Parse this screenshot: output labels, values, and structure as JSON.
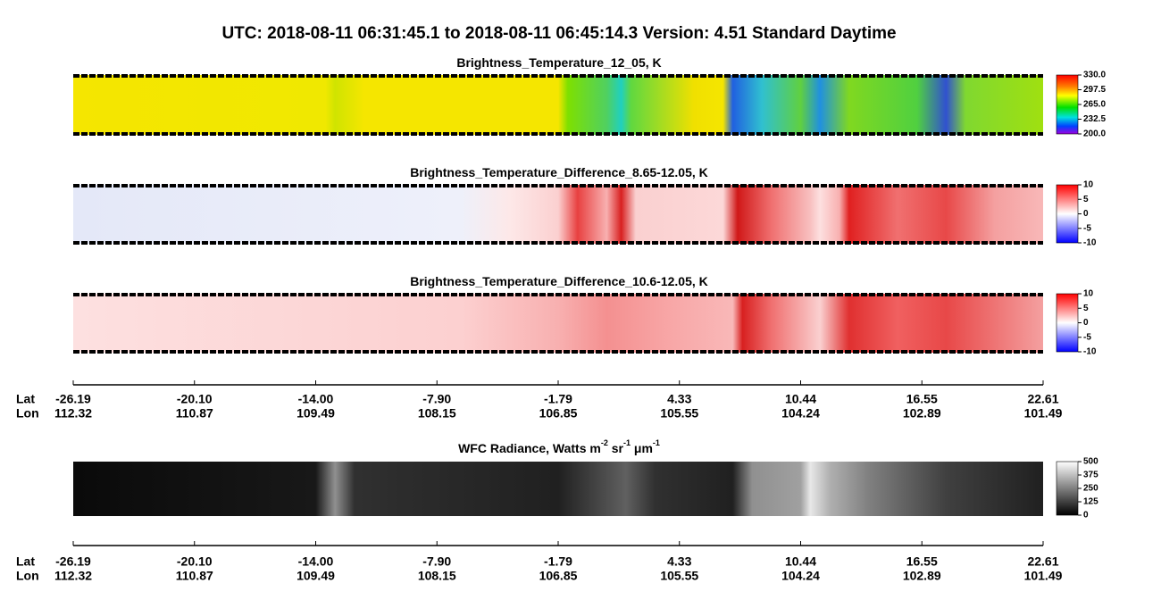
{
  "title": "UTC:  2018-08-11   06:31:45.1  to  2018-08-11   06:45:14.3    Version: 4.51  Standard Daytime",
  "panels": [
    {
      "title": [
        "Brightness_Temperature_12_05, K"
      ],
      "colorbar_ticks": [
        "330.0",
        "297.5",
        "265.0",
        "232.5",
        "200.0"
      ]
    },
    {
      "title": [
        "Brightness_Temperature_Difference_8.65-12.05, K"
      ],
      "colorbar_ticks": [
        "10",
        "5",
        "0",
        "-5",
        "-10"
      ]
    },
    {
      "title": [
        "Brightness_Temperature_Difference_10.6-12.05, K"
      ],
      "colorbar_ticks": [
        "10",
        "5",
        "0",
        "-5",
        "-10"
      ]
    },
    {
      "title": [
        "WFC Radiance, Watts m",
        "-2",
        " sr",
        "-1",
        " μm",
        "-1"
      ],
      "colorbar_ticks": [
        "500",
        "375",
        "250",
        "125",
        "0"
      ]
    }
  ],
  "axis": {
    "lat_label": "Lat",
    "lon_label": "Lon",
    "lat": [
      "-26.19",
      "-20.10",
      "-14.00",
      "-7.90",
      "-1.79",
      "4.33",
      "10.44",
      "16.55",
      "22.61"
    ],
    "lon": [
      "112.32",
      "110.87",
      "109.49",
      "108.15",
      "106.85",
      "105.55",
      "104.24",
      "102.89",
      "101.49"
    ]
  }
}
